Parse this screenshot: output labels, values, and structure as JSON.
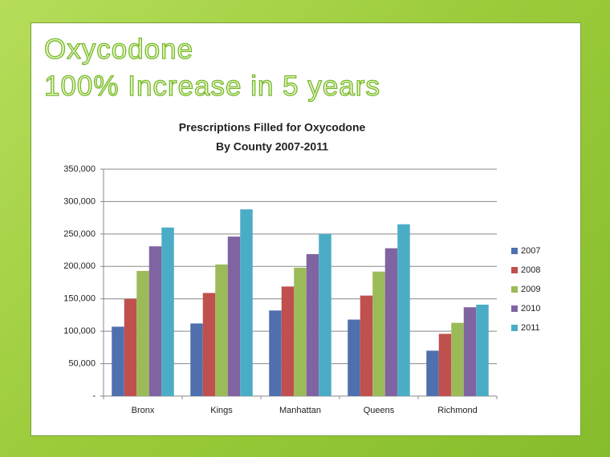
{
  "slide": {
    "title_lines": [
      "Oxycodone",
      "100% Increase in 5 years"
    ]
  },
  "chart_data": {
    "type": "bar",
    "title": "Prescriptions Filled for Oxycodone",
    "subtitle": "By County 2007-2011",
    "categories": [
      "Bronx",
      "Kings",
      "Manhattan",
      "Queens",
      "Richmond"
    ],
    "series": [
      {
        "name": "2007",
        "color": "#4f6fae",
        "values": [
          107000,
          112000,
          132000,
          118000,
          70000
        ]
      },
      {
        "name": "2008",
        "color": "#c0504d",
        "values": [
          150000,
          159000,
          169000,
          155000,
          96000
        ]
      },
      {
        "name": "2009",
        "color": "#9bbb59",
        "values": [
          193000,
          203000,
          198000,
          192000,
          113000
        ]
      },
      {
        "name": "2010",
        "color": "#8064a2",
        "values": [
          231000,
          246000,
          219000,
          228000,
          137000
        ]
      },
      {
        "name": "2011",
        "color": "#4bacc6",
        "values": [
          260000,
          288000,
          250000,
          265000,
          141000
        ]
      }
    ],
    "ylim": [
      0,
      350000
    ],
    "yticks": [
      {
        "value": 0,
        "label": "-"
      },
      {
        "value": 50000,
        "label": "50,000"
      },
      {
        "value": 100000,
        "label": "100,000"
      },
      {
        "value": 150000,
        "label": "150,000"
      },
      {
        "value": 200000,
        "label": "200,000"
      },
      {
        "value": 250000,
        "label": "250,000"
      },
      {
        "value": 300000,
        "label": "300,000"
      },
      {
        "value": 350000,
        "label": "350,000"
      }
    ],
    "grid": true,
    "legend": "right"
  }
}
